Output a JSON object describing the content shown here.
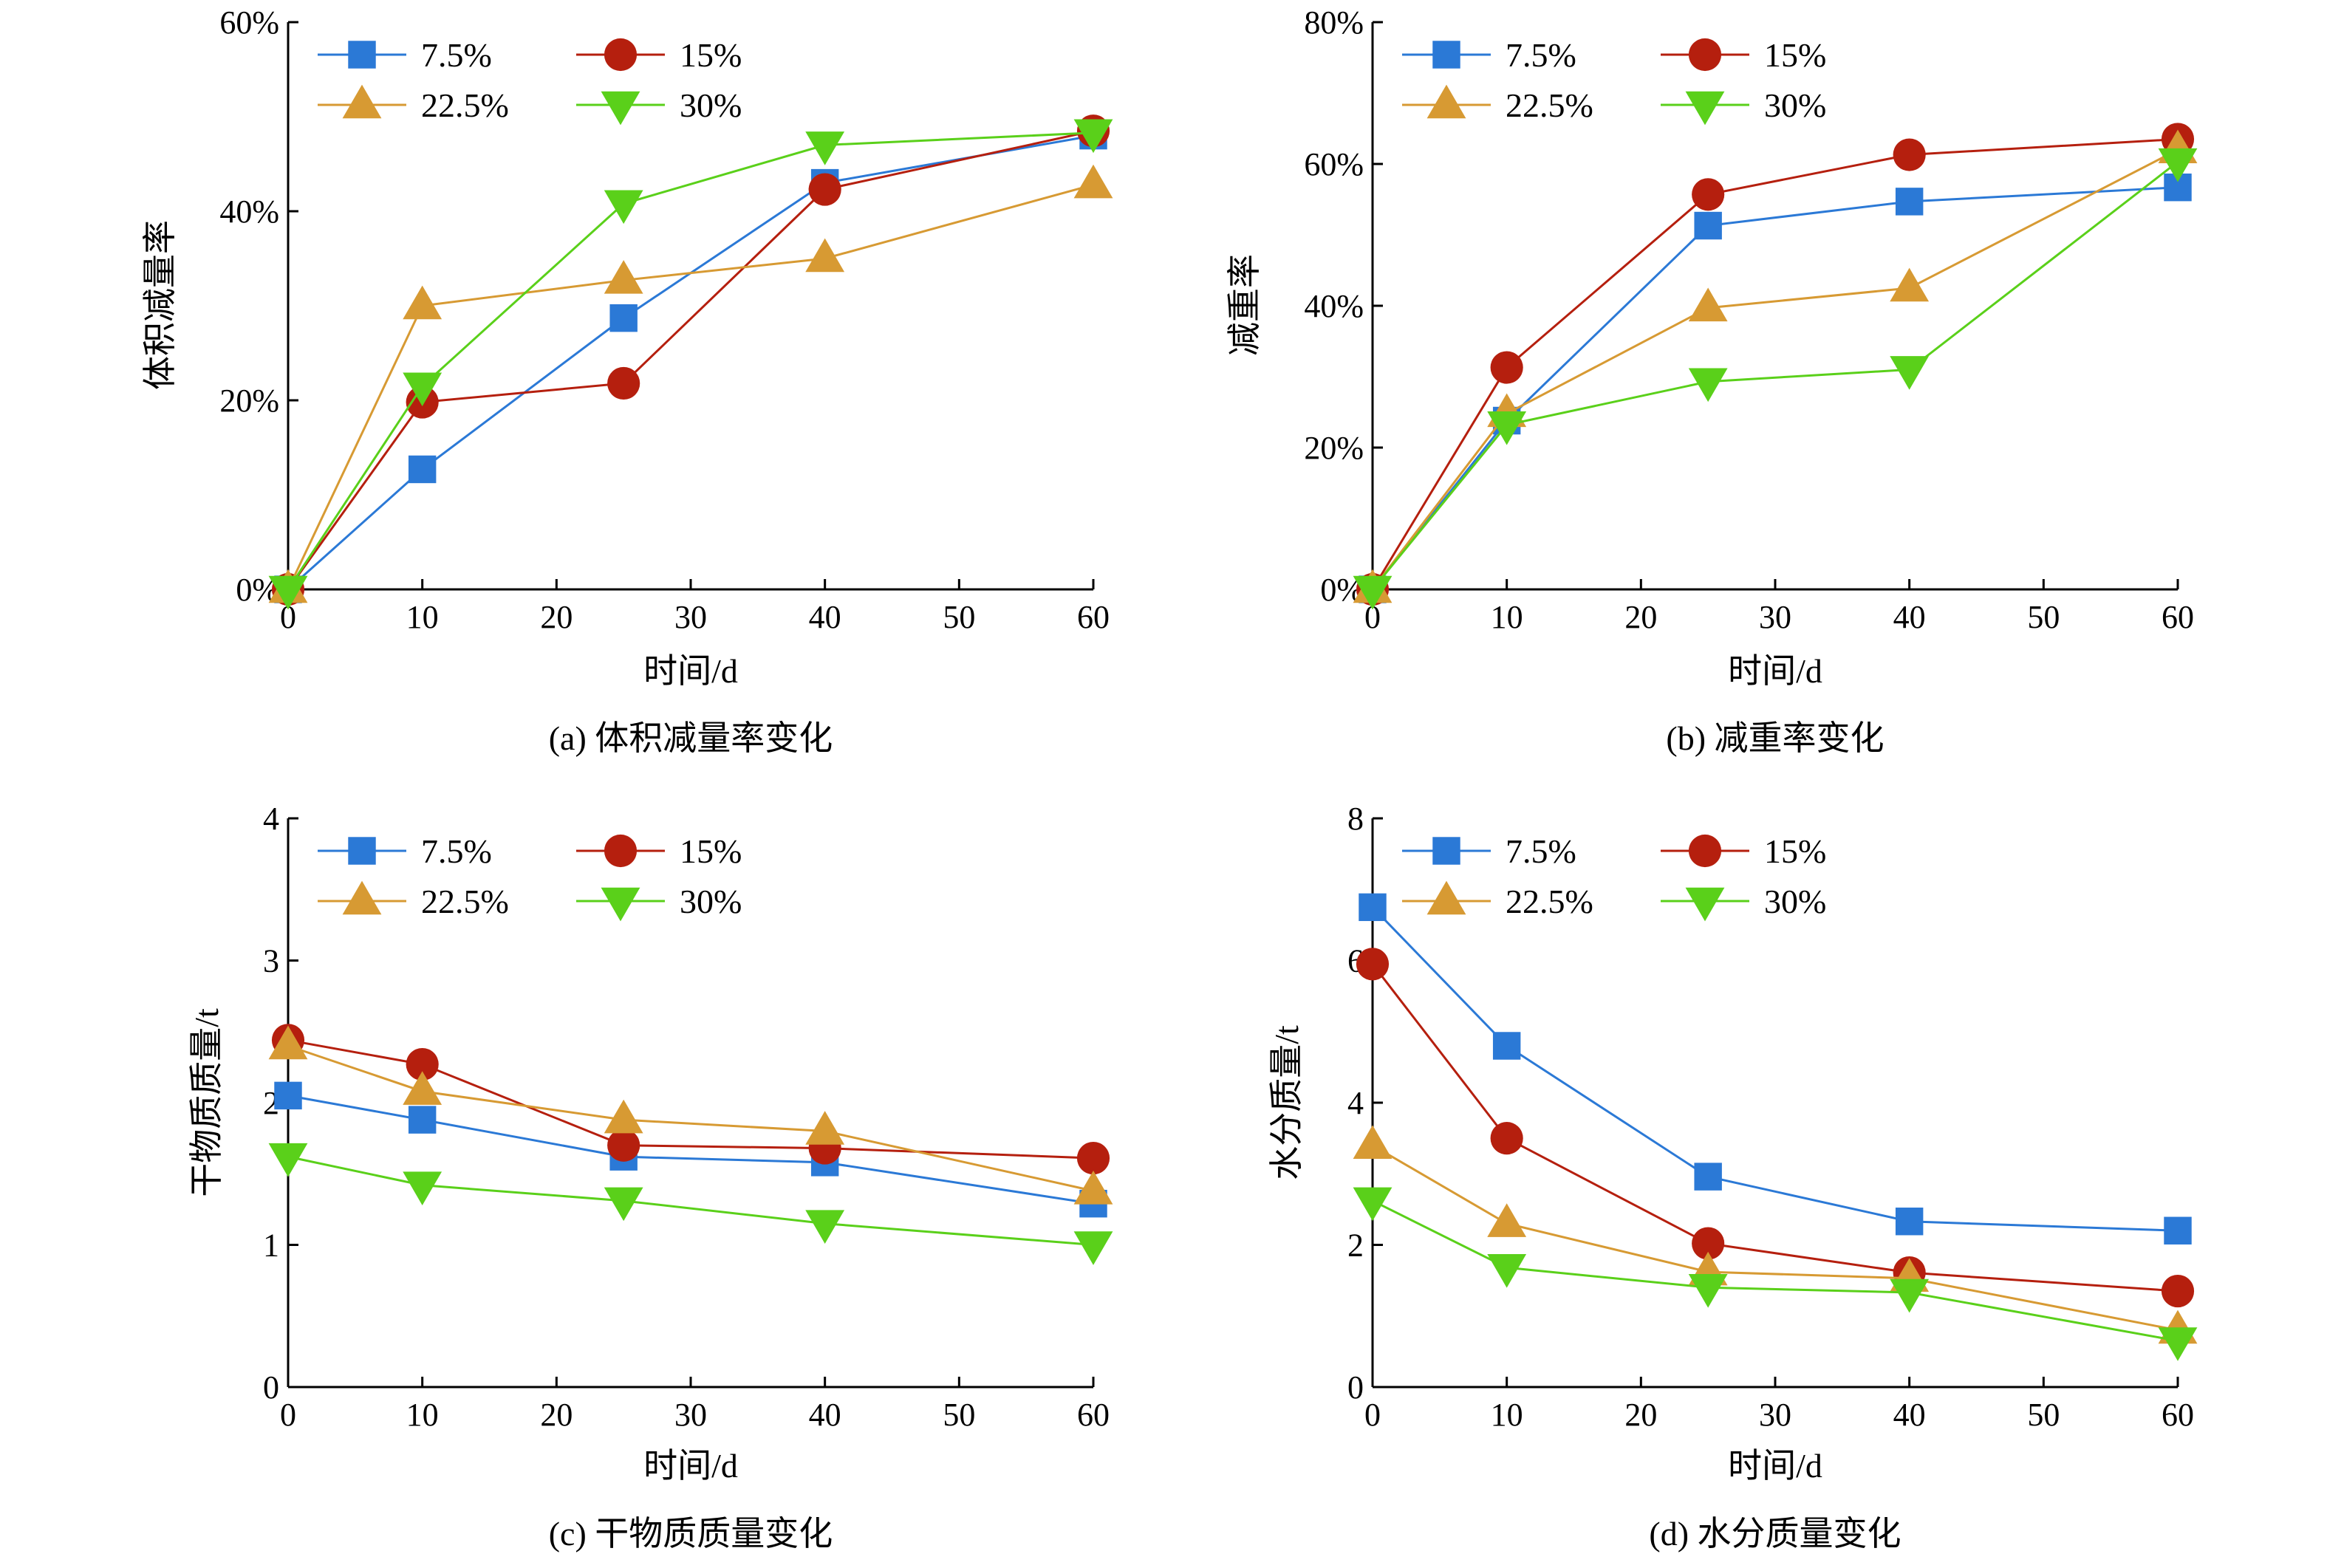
{
  "colors": {
    "s75": "#2b79d6",
    "s15": "#b51f0e",
    "s225": "#d79a33",
    "s30": "#5ad01a",
    "axis": "#000000"
  },
  "legend_labels": [
    "7.5%",
    "15%",
    "22.5%",
    "30%"
  ],
  "chart_data": [
    {
      "type": "line",
      "caption": "(a) 体积减量率变化",
      "xlabel": "时间/d",
      "ylabel": "体积减量率",
      "xlim": [
        0,
        60
      ],
      "ylim": [
        0,
        60
      ],
      "x_ticks": [
        "0",
        "10",
        "20",
        "30",
        "40",
        "50",
        "60"
      ],
      "y_ticks": [
        "0%",
        "20%",
        "40%",
        "60%"
      ],
      "legend_position": "top-left",
      "x": [
        0,
        10,
        25,
        40,
        60
      ],
      "series": [
        {
          "name": "7.5%",
          "marker": "square",
          "values": [
            0,
            12.7,
            28.7,
            43.0,
            48.0
          ]
        },
        {
          "name": "15%",
          "marker": "circle",
          "values": [
            0,
            19.8,
            21.8,
            42.3,
            48.5
          ]
        },
        {
          "name": "22.5%",
          "marker": "triangle-up",
          "values": [
            0,
            30.0,
            32.7,
            35.0,
            42.8
          ]
        },
        {
          "name": "30%",
          "marker": "triangle-down",
          "values": [
            0,
            21.5,
            40.8,
            47.0,
            48.3
          ]
        }
      ]
    },
    {
      "type": "line",
      "caption": "(b) 减重率变化",
      "xlabel": "时间/d",
      "ylabel": "减重率",
      "xlim": [
        0,
        60
      ],
      "ylim": [
        0,
        80
      ],
      "x_ticks": [
        "0",
        "10",
        "20",
        "30",
        "40",
        "50",
        "60"
      ],
      "y_ticks": [
        "0%",
        "20%",
        "40%",
        "60%",
        "80%"
      ],
      "legend_position": "top-left",
      "x": [
        0,
        10,
        25,
        40,
        60
      ],
      "series": [
        {
          "name": "7.5%",
          "marker": "square",
          "values": [
            0,
            23.8,
            51.3,
            54.7,
            56.7
          ]
        },
        {
          "name": "15%",
          "marker": "circle",
          "values": [
            0,
            31.3,
            55.7,
            61.3,
            63.5
          ]
        },
        {
          "name": "22.5%",
          "marker": "triangle-up",
          "values": [
            0,
            24.8,
            39.7,
            42.5,
            62.0
          ]
        },
        {
          "name": "30%",
          "marker": "triangle-down",
          "values": [
            0,
            23.2,
            29.3,
            31.0,
            60.3
          ]
        }
      ]
    },
    {
      "type": "line",
      "caption": "(c) 干物质质量变化",
      "xlabel": "时间/d",
      "ylabel": "干物质质量/t",
      "xlim": [
        0,
        60
      ],
      "ylim": [
        0,
        4
      ],
      "x_ticks": [
        "0",
        "10",
        "20",
        "30",
        "40",
        "50",
        "60"
      ],
      "y_ticks": [
        "0",
        "1",
        "2",
        "3",
        "4"
      ],
      "legend_position": "top-left",
      "x": [
        0,
        10,
        25,
        40,
        60
      ],
      "series": [
        {
          "name": "7.5%",
          "marker": "square",
          "values": [
            2.05,
            1.88,
            1.62,
            1.58,
            1.29
          ]
        },
        {
          "name": "15%",
          "marker": "circle",
          "values": [
            2.44,
            2.27,
            1.7,
            1.68,
            1.61
          ]
        },
        {
          "name": "22.5%",
          "marker": "triangle-up",
          "values": [
            2.4,
            2.08,
            1.88,
            1.8,
            1.38
          ]
        },
        {
          "name": "30%",
          "marker": "triangle-down",
          "values": [
            1.62,
            1.42,
            1.31,
            1.15,
            1.0
          ]
        }
      ]
    },
    {
      "type": "line",
      "caption": "(d) 水分质量变化",
      "xlabel": "时间/d",
      "ylabel": "水分质量/t",
      "xlim": [
        0,
        60
      ],
      "ylim": [
        0,
        8
      ],
      "x_ticks": [
        "0",
        "10",
        "20",
        "30",
        "40",
        "50",
        "60"
      ],
      "y_ticks": [
        "0",
        "2",
        "4",
        "6",
        "8"
      ],
      "legend_position": "top-left",
      "x": [
        0,
        10,
        25,
        40,
        60
      ],
      "series": [
        {
          "name": "7.5%",
          "marker": "square",
          "values": [
            6.75,
            4.8,
            2.96,
            2.33,
            2.2
          ]
        },
        {
          "name": "15%",
          "marker": "circle",
          "values": [
            5.95,
            3.5,
            2.02,
            1.61,
            1.35
          ]
        },
        {
          "name": "22.5%",
          "marker": "triangle-up",
          "values": [
            3.4,
            2.3,
            1.62,
            1.53,
            0.8
          ]
        },
        {
          "name": "30%",
          "marker": "triangle-down",
          "values": [
            2.62,
            1.68,
            1.4,
            1.33,
            0.65
          ]
        }
      ]
    }
  ]
}
